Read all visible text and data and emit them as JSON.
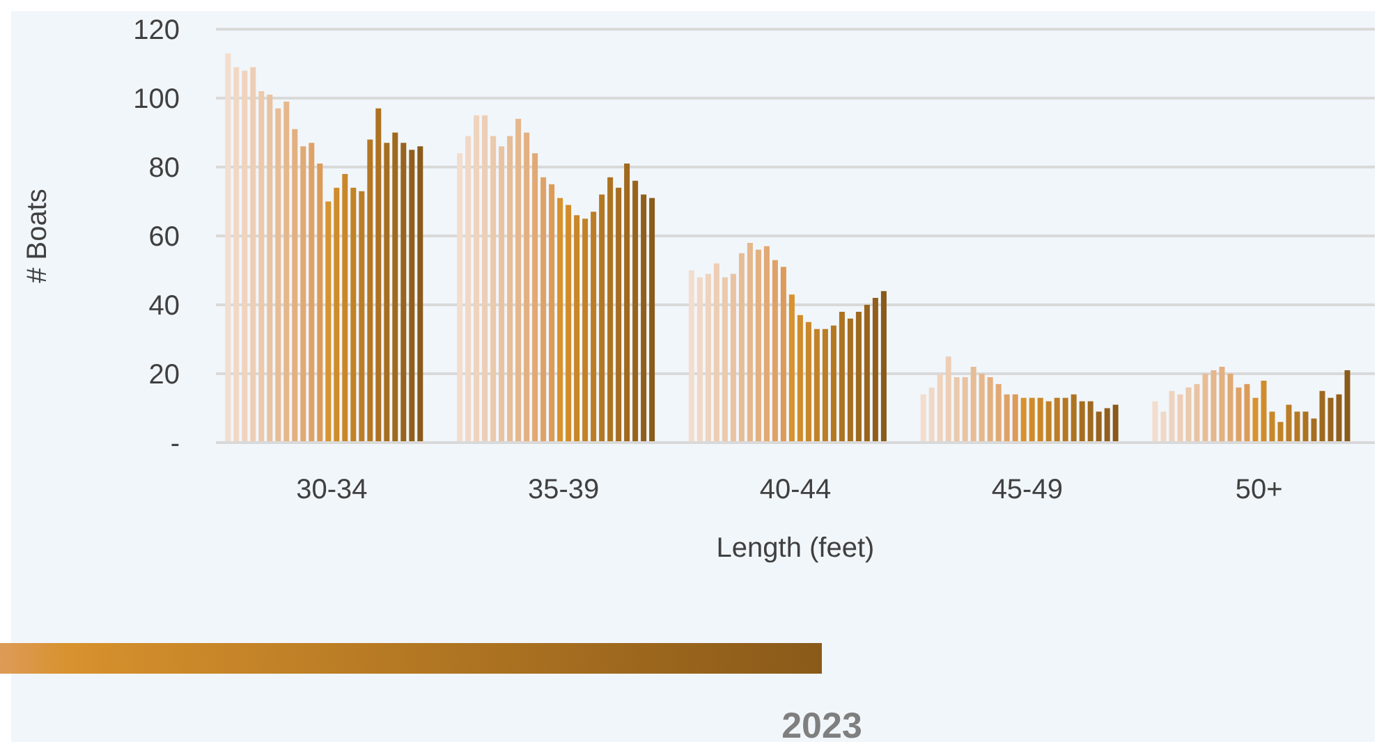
{
  "chart_data": {
    "type": "bar",
    "xlabel": "Length (feet)",
    "ylabel": "# Boats",
    "categories": [
      "30-34",
      "35-39",
      "40-44",
      "45-49",
      "50+"
    ],
    "series": [
      {
        "color": "#f3ddcd",
        "values": [
          113,
          84,
          50,
          14,
          12
        ]
      },
      {
        "color": "#f1d8c5",
        "values": [
          109,
          89,
          48,
          16,
          9
        ]
      },
      {
        "color": "#efd3bd",
        "values": [
          108,
          95,
          49,
          20,
          15
        ]
      },
      {
        "color": "#edceb5",
        "values": [
          109,
          95,
          52,
          25,
          14
        ]
      },
      {
        "color": "#ebc9ab",
        "values": [
          102,
          89,
          48,
          19,
          16
        ]
      },
      {
        "color": "#e9c3a1",
        "values": [
          101,
          86,
          49,
          19,
          17
        ]
      },
      {
        "color": "#e7bd96",
        "values": [
          97,
          89,
          55,
          22,
          20
        ]
      },
      {
        "color": "#e5b78b",
        "values": [
          99,
          94,
          58,
          20,
          21
        ]
      },
      {
        "color": "#e3b080",
        "values": [
          91,
          90,
          56,
          19,
          22
        ]
      },
      {
        "color": "#e1a973",
        "values": [
          86,
          84,
          57,
          17,
          20
        ]
      },
      {
        "color": "#dfa266",
        "values": [
          87,
          77,
          53,
          14,
          16
        ]
      },
      {
        "color": "#dd9b58",
        "values": [
          81,
          75,
          51,
          14,
          17
        ]
      },
      {
        "color": "#d8922e",
        "values": [
          70,
          71,
          43,
          13,
          13
        ]
      },
      {
        "color": "#d08c2b",
        "values": [
          74,
          69,
          37,
          13,
          18
        ]
      },
      {
        "color": "#c98729",
        "values": [
          78,
          66,
          35,
          13,
          9
        ]
      },
      {
        "color": "#c28227",
        "values": [
          74,
          65,
          33,
          12,
          6
        ]
      },
      {
        "color": "#bb7d25",
        "values": [
          73,
          67,
          33,
          13,
          11
        ]
      },
      {
        "color": "#b47823",
        "values": [
          88,
          72,
          34,
          13,
          9
        ]
      },
      {
        "color": "#ad7321",
        "values": [
          97,
          77,
          38,
          14,
          9
        ]
      },
      {
        "color": "#a66e20",
        "values": [
          87,
          74,
          36,
          12,
          7
        ]
      },
      {
        "color": "#9f691e",
        "values": [
          90,
          81,
          38,
          12,
          15
        ]
      },
      {
        "color": "#98641c",
        "values": [
          87,
          76,
          40,
          9,
          13
        ]
      },
      {
        "color": "#915f1b",
        "values": [
          85,
          72,
          42,
          10,
          14
        ]
      },
      {
        "color": "#8a5a19",
        "values": [
          86,
          71,
          44,
          11,
          21
        ]
      }
    ],
    "ylim": [
      0,
      120
    ],
    "yticks": [
      {
        "value": 0,
        "label": "-"
      },
      20,
      40,
      60,
      80,
      100,
      120
    ],
    "grid": "y",
    "legend": false,
    "annotations": [
      "2023"
    ]
  }
}
